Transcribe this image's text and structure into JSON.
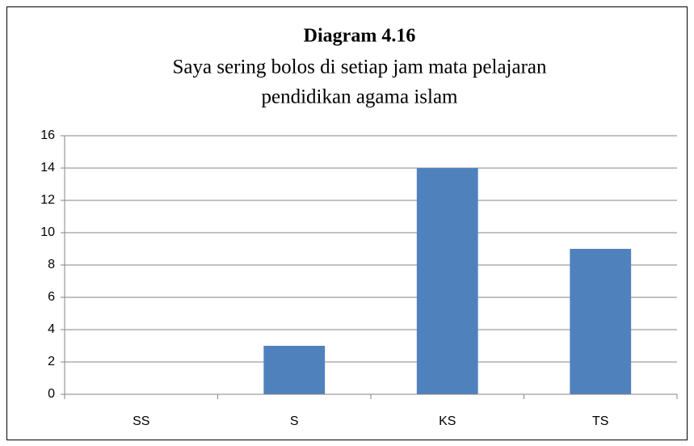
{
  "chart_data": {
    "type": "bar",
    "title": "Diagram 4.16",
    "subtitle": [
      "Saya sering bolos di setiap jam mata pelajaran",
      "pendidikan agama islam"
    ],
    "categories": [
      "SS",
      "S",
      "KS",
      "TS"
    ],
    "values": [
      0,
      3,
      14,
      9
    ],
    "color": "#4f81bd",
    "ylim": [
      0,
      16
    ],
    "yticks": [
      0,
      2,
      4,
      6,
      8,
      10,
      12,
      14,
      16
    ],
    "grid": true
  }
}
